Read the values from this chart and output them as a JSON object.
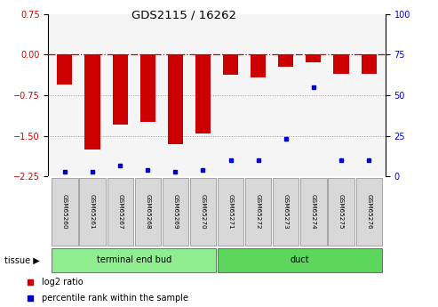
{
  "title": "GDS2115 / 16262",
  "samples": [
    "GSM65260",
    "GSM65261",
    "GSM65267",
    "GSM65268",
    "GSM65269",
    "GSM65270",
    "GSM65271",
    "GSM65272",
    "GSM65273",
    "GSM65274",
    "GSM65275",
    "GSM65276"
  ],
  "log2_ratio": [
    -0.55,
    -1.75,
    -1.3,
    -1.25,
    -1.65,
    -1.45,
    -0.38,
    -0.42,
    -0.22,
    -0.15,
    -0.35,
    -0.35
  ],
  "percentile_rank": [
    3,
    3,
    7,
    4,
    3,
    4,
    10,
    10,
    23,
    55,
    10,
    10
  ],
  "groups": [
    {
      "label": "terminal end bud",
      "start": 0,
      "end": 6,
      "color": "#90ee90"
    },
    {
      "label": "duct",
      "start": 6,
      "end": 12,
      "color": "#5cd65c"
    }
  ],
  "ylim_left": [
    -2.25,
    0.75
  ],
  "ylim_right": [
    0,
    100
  ],
  "bar_color": "#cc0000",
  "dot_color": "#0000cc",
  "hline_color": "#cc0000",
  "hline_style": "-.",
  "grid_color": "#aaaaaa",
  "bg_color": "#ffffff",
  "plot_bg": "#f5f5f5",
  "left_yticks": [
    0.75,
    0,
    -0.75,
    -1.5,
    -2.25
  ],
  "right_yticks": [
    100,
    75,
    50,
    25,
    0
  ],
  "tissue_label": "tissue",
  "legend_items": [
    {
      "color": "#cc0000",
      "label": "log2 ratio"
    },
    {
      "color": "#0000cc",
      "label": "percentile rank within the sample"
    }
  ]
}
